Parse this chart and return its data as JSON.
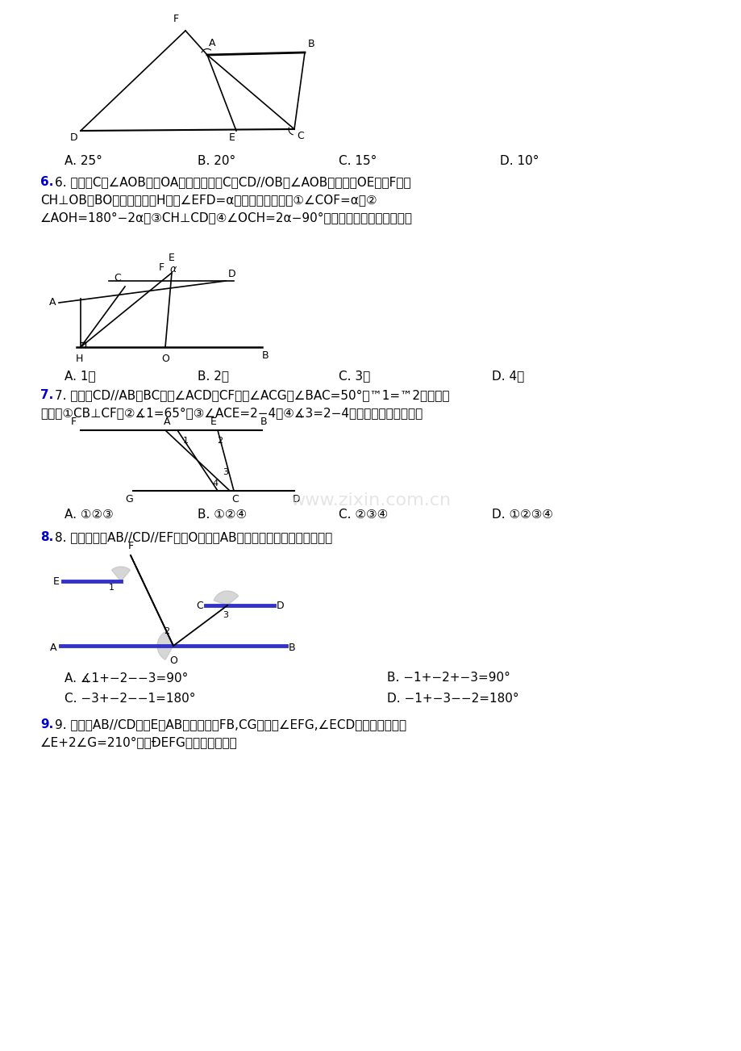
{
  "bg_color": "#ffffff",
  "watermark": "www.zixin.com.cn",
  "q5_answers": [
    "A. 25°",
    "B. 20°",
    "C. 15°",
    "D. 10°"
  ],
  "q6_text_line1": "6. 如图，C为∠AOB的辽OA上一点，过点C作CD//OB交∠AOB的平分线OE于点F，作",
  "q6_text_line2": "CH⊥OB交BO的延长线于点H，若∠EFD=α，现有以下结论：①∠COF=α；②",
  "q6_text_line3": "∠AOH=180°−2α；③CH⊥CD；④∠OCH=2α−90°。结论正确的个数是（　）",
  "q6_answers": [
    "A. 1个",
    "B. 2个",
    "C. 3个",
    "D. 4个"
  ],
  "q7_text_line1": "7. 如图，CD//AB，BC平分∠ACD，CF平分∠ACG，∠BAC=50°，™1=™2，则下列",
  "q7_text_line2": "结论：①CB⊥CF，②∡1=65°，③∠ACE=2−4，④∡3=2−4。其中正确的是（　）",
  "q7_answers": [
    "A. ①②③",
    "B. ①②④",
    "C. ②③④",
    "D. ①②③④"
  ],
  "q8_text": "8. 如图，直线AB//CD//EF，点O在直线AB上，下列结论正确的是（　）",
  "q8_answers_left": [
    "A. ∡1+−2−−3=90°",
    "C. −3+−2−−1=180°"
  ],
  "q8_answers_right": [
    "B. −1+−2+−3=90°",
    "D. −1+−3−−2=180°"
  ],
  "q9_text_line1": "9. 如图，AB//CD，点E为AB上方一点，FB,CG分別为∠EFG,∠ECD的角平分线，若",
  "q9_text_line2": "∠E+2∠G=210°，则ĐEFG的度数为（　）"
}
